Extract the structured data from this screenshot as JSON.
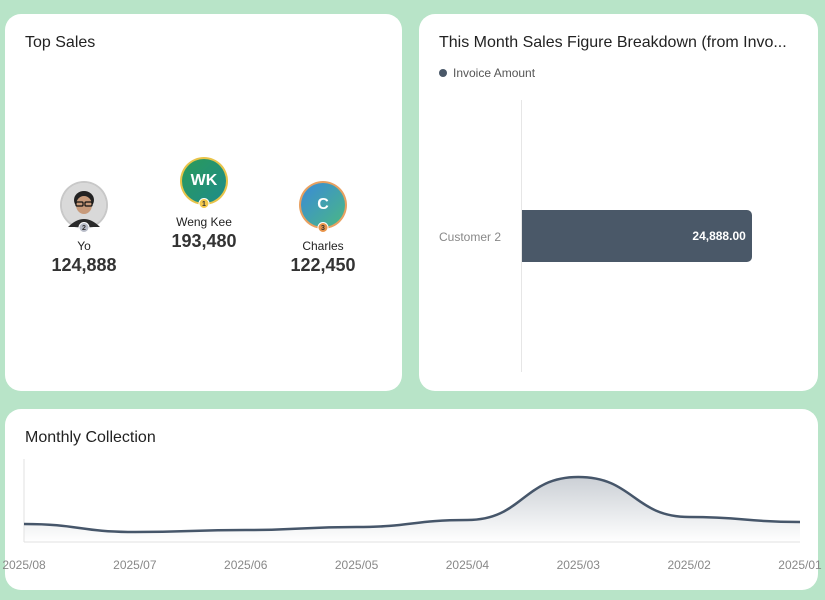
{
  "top_sales": {
    "title": "Top Sales",
    "leaders": [
      {
        "rank": "2",
        "name": "Yo",
        "amount": "124,888",
        "initials": "",
        "badge_color": "#b8bcc8",
        "ring": "#c8c8c8"
      },
      {
        "rank": "1",
        "name": "Weng Kee",
        "amount": "193,480",
        "initials": "WK",
        "badge_color": "#f3c84b",
        "ring": "#e8c44a"
      },
      {
        "rank": "3",
        "name": "Charles",
        "amount": "122,450",
        "initials": "C",
        "badge_color": "#e8944a",
        "ring": "#e8a060"
      }
    ]
  },
  "breakdown": {
    "title": "This Month Sales Figure Breakdown (from Invo...",
    "legend": "Invoice Amount",
    "accent": "#4a5868",
    "chart_data": {
      "type": "bar",
      "orientation": "horizontal",
      "categories": [
        "Customer 2"
      ],
      "series": [
        {
          "name": "Invoice Amount",
          "values": [
            24888.0
          ]
        }
      ],
      "data_labels": [
        "24,888.00"
      ],
      "xlim": [
        0,
        30000
      ]
    }
  },
  "monthly": {
    "title": "Monthly Collection",
    "accent": "#46566a",
    "chart_data": {
      "type": "area",
      "categories": [
        "2025/08",
        "2025/07",
        "2025/06",
        "2025/05",
        "2025/04",
        "2025/03",
        "2025/02",
        "2025/01"
      ],
      "values": [
        18,
        10,
        12,
        15,
        22,
        65,
        25,
        20
      ],
      "ylim": [
        0,
        75
      ],
      "grid": false
    }
  }
}
